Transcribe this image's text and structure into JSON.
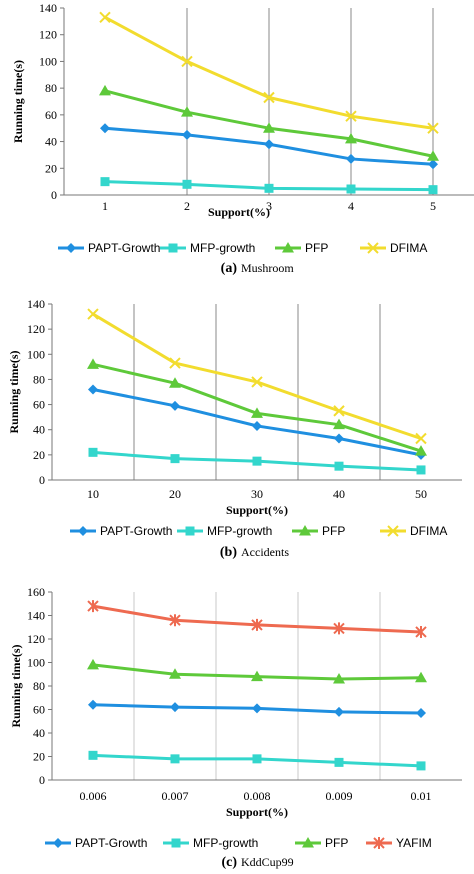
{
  "chart_data": [
    {
      "type": "line",
      "categories": [
        "1",
        "2",
        "3",
        "4",
        "5"
      ],
      "xlabel": "Support(%)",
      "ylabel": "Running time(s)",
      "ylim": [
        0,
        140
      ],
      "yticks": [
        0,
        20,
        40,
        60,
        80,
        100,
        120,
        140
      ],
      "grid": "vertical",
      "legend": "bottom",
      "caption_letter": "(a)",
      "caption": "Mushroom",
      "series": [
        {
          "name": "PAPT-Growth",
          "values": [
            50,
            45,
            38,
            27,
            23
          ],
          "color": "#1f8fe0",
          "marker": "diamond"
        },
        {
          "name": "MFP-growth",
          "values": [
            10,
            8,
            5,
            4.5,
            4
          ],
          "color": "#33d6cc",
          "marker": "square"
        },
        {
          "name": "PFP",
          "values": [
            78,
            62,
            50,
            42,
            29
          ],
          "color": "#5ec93a",
          "marker": "triangle"
        },
        {
          "name": "DFIMA",
          "values": [
            133,
            100,
            73,
            59,
            50
          ],
          "color": "#f2dc2e",
          "marker": "x"
        }
      ]
    },
    {
      "type": "line",
      "categories": [
        "10",
        "20",
        "30",
        "40",
        "50"
      ],
      "xlabel": "Support(%)",
      "ylabel": "Running time(s)",
      "ylim": [
        0,
        140
      ],
      "yticks": [
        0,
        20,
        40,
        60,
        80,
        100,
        120,
        140
      ],
      "grid": "vertical",
      "legend": "bottom",
      "caption_letter": "(b)",
      "caption": "Accidents",
      "series": [
        {
          "name": "PAPT-Growth",
          "values": [
            72,
            59,
            43,
            33,
            20
          ],
          "color": "#1f8fe0",
          "marker": "diamond"
        },
        {
          "name": "MFP-growth",
          "values": [
            22,
            17,
            15,
            11,
            8
          ],
          "color": "#33d6cc",
          "marker": "square"
        },
        {
          "name": "PFP",
          "values": [
            92,
            77,
            53,
            44,
            23
          ],
          "color": "#5ec93a",
          "marker": "triangle"
        },
        {
          "name": "DFIMA",
          "values": [
            132,
            93,
            78,
            55,
            33
          ],
          "color": "#f2dc2e",
          "marker": "x"
        }
      ]
    },
    {
      "type": "line",
      "categories": [
        "0.006",
        "0.007",
        "0.008",
        "0.009",
        "0.01"
      ],
      "xlabel": "Support(%)",
      "ylabel": "Running time(s)",
      "ylim": [
        0,
        160
      ],
      "yticks": [
        0,
        20,
        40,
        60,
        80,
        100,
        120,
        140,
        160
      ],
      "grid": "vertical",
      "legend": "bottom",
      "caption_letter": "(c)",
      "caption": "KddCup99",
      "series": [
        {
          "name": "PAPT-Growth",
          "values": [
            64,
            62,
            61,
            58,
            57
          ],
          "color": "#1f8fe0",
          "marker": "diamond"
        },
        {
          "name": "MFP-growth",
          "values": [
            21,
            18,
            18,
            15,
            12
          ],
          "color": "#33d6cc",
          "marker": "square"
        },
        {
          "name": "PFP",
          "values": [
            98,
            90,
            88,
            86,
            87
          ],
          "color": "#5ec93a",
          "marker": "triangle"
        },
        {
          "name": "YAFIM",
          "values": [
            148,
            136,
            132,
            129,
            126
          ],
          "color": "#ee6a50",
          "marker": "asterisk"
        }
      ]
    }
  ]
}
